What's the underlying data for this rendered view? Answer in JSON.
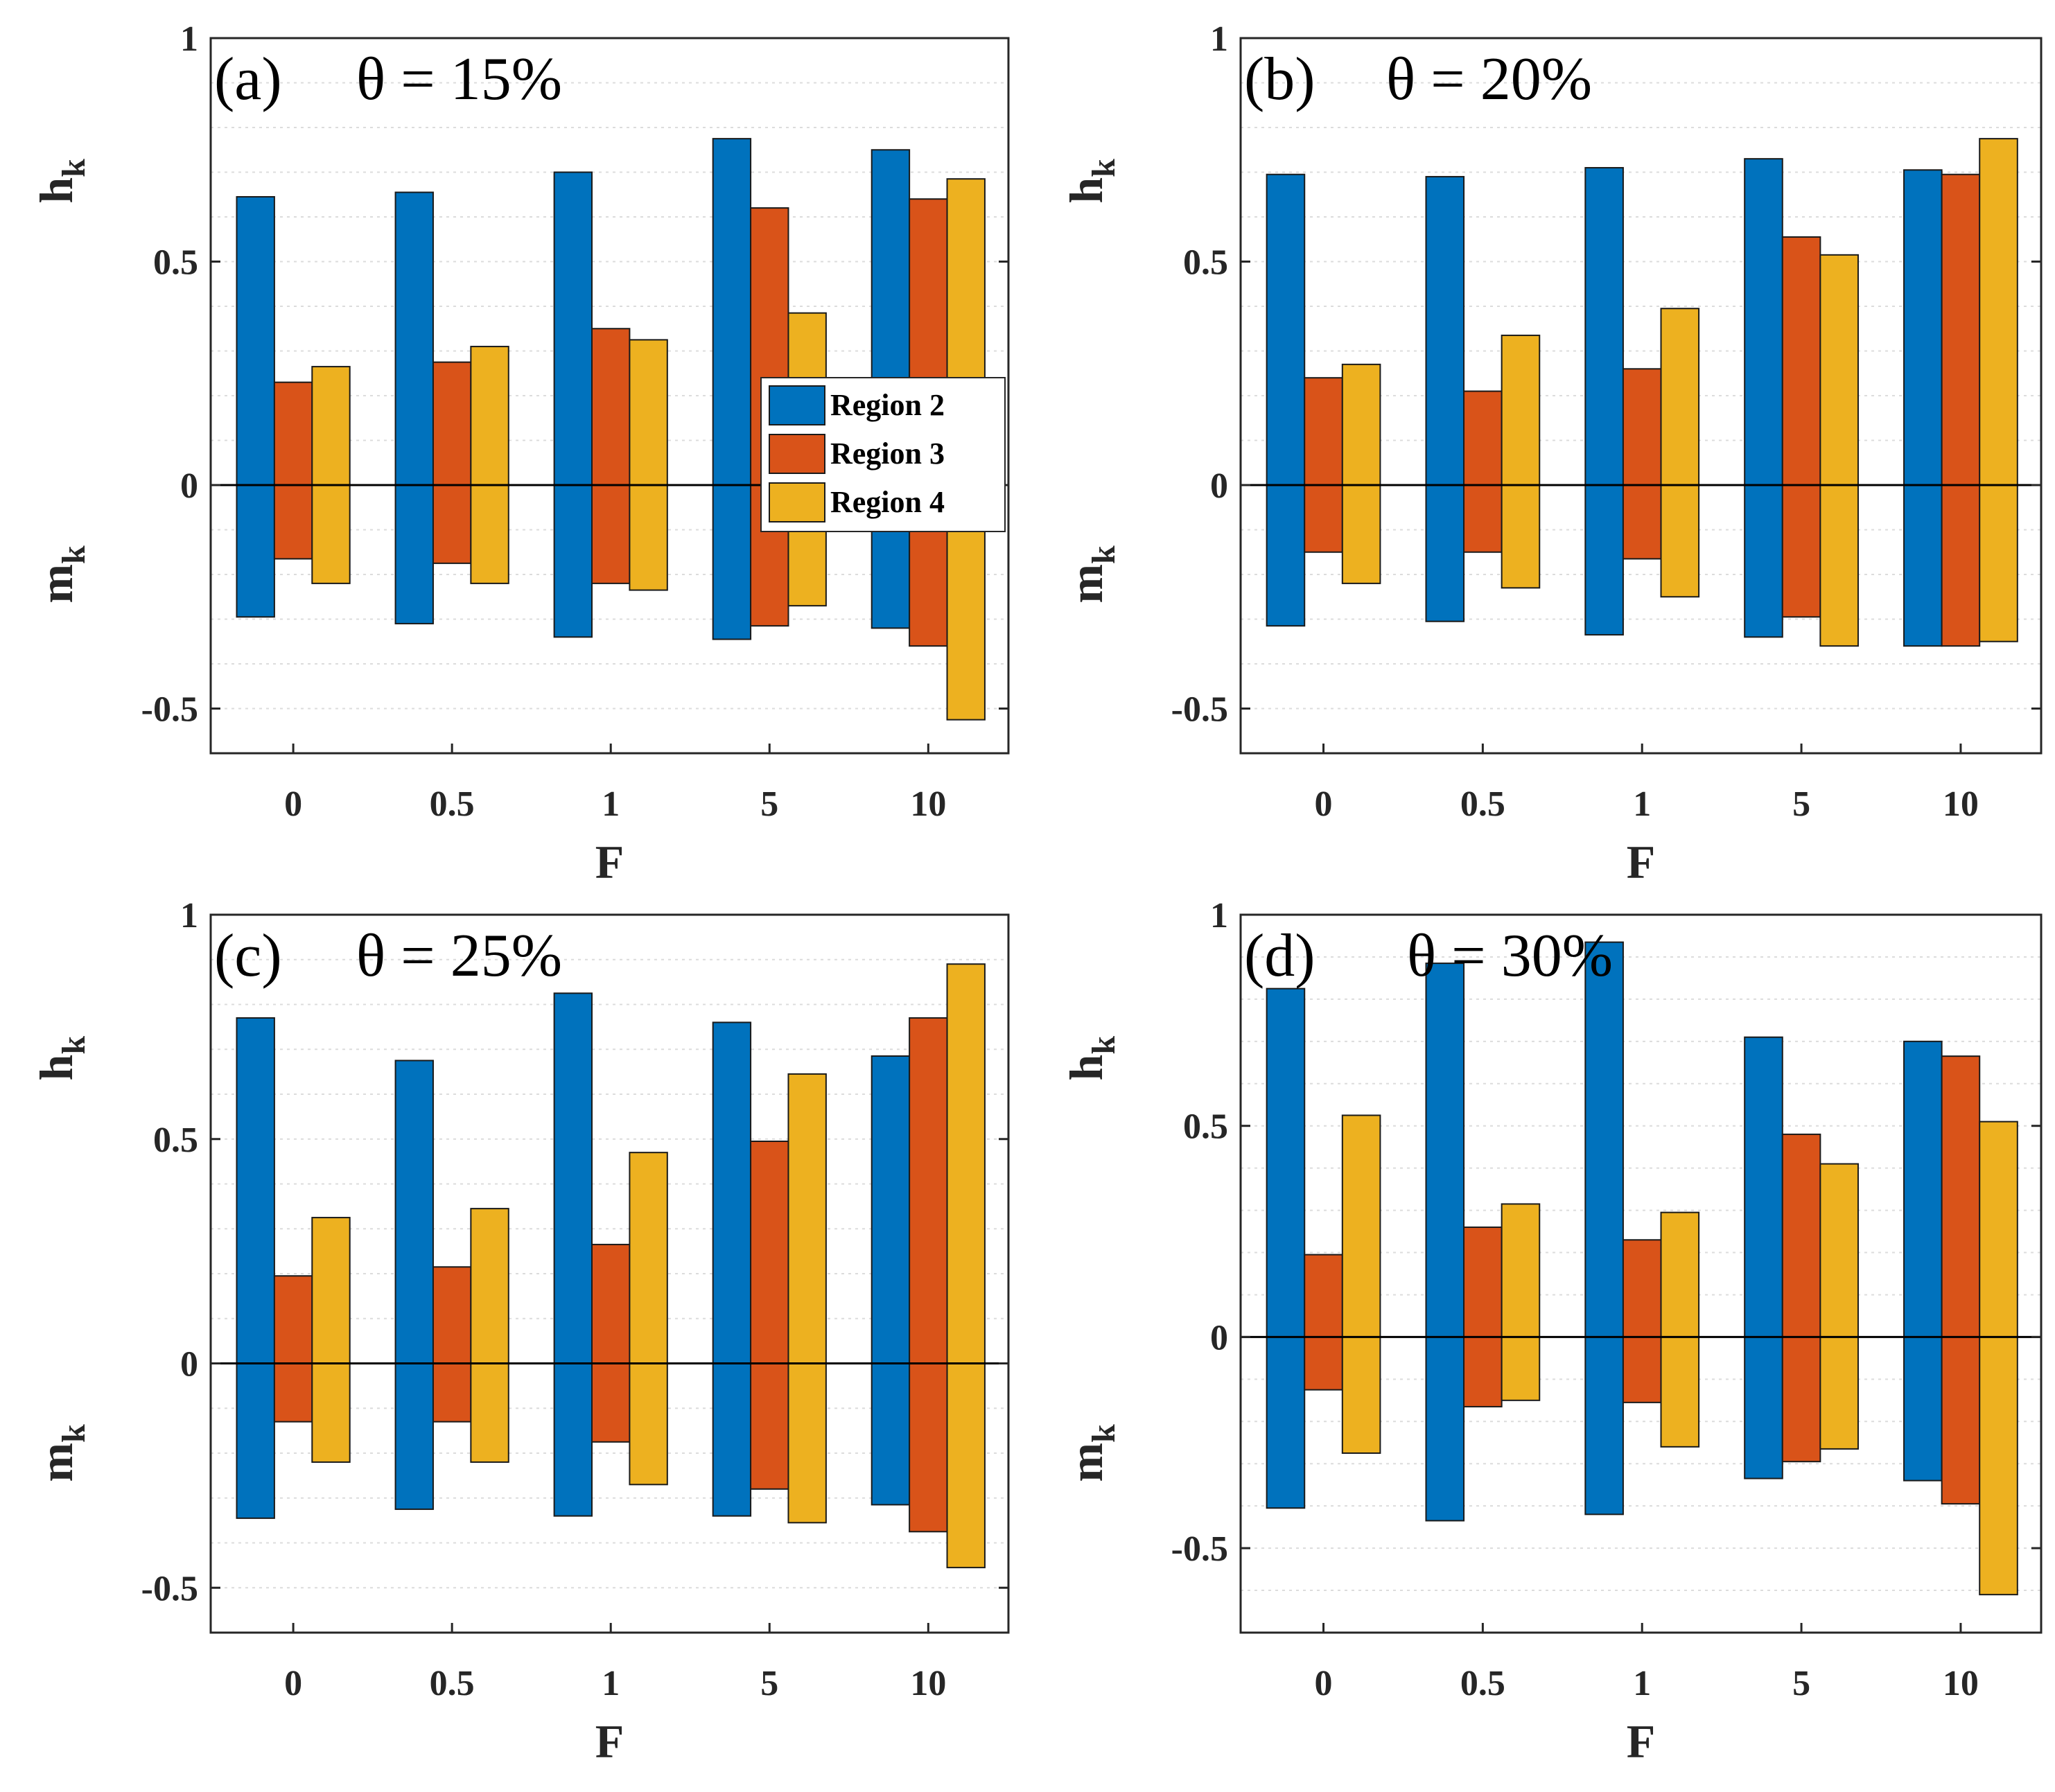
{
  "colors": {
    "region2": "#0072BD",
    "region3": "#D95319",
    "region4": "#EDB120"
  },
  "legend": [
    "Region 2",
    "Region 3",
    "Region 4"
  ],
  "chart_data": [
    {
      "type": "bar",
      "panel": "(a)",
      "title": "θ = 15%",
      "categories": [
        "0",
        "0.5",
        "1",
        "5",
        "10"
      ],
      "xlabel": "F",
      "ylabel_top": "h",
      "ylabel_bottom": "m",
      "ylabel_sub": "k",
      "ylim": [
        -0.6,
        1
      ],
      "yticks": [
        "1",
        "0.5",
        "0",
        "-0.5"
      ],
      "series_positive": [
        {
          "name": "Region 2",
          "values": [
            0.645,
            0.655,
            0.7,
            0.775,
            0.75
          ]
        },
        {
          "name": "Region 3",
          "values": [
            0.23,
            0.275,
            0.35,
            0.62,
            0.64
          ]
        },
        {
          "name": "Region 4",
          "values": [
            0.265,
            0.31,
            0.325,
            0.385,
            0.685
          ]
        }
      ],
      "series_negative": [
        {
          "name": "Region 2",
          "values": [
            -0.295,
            -0.31,
            -0.34,
            -0.345,
            -0.32
          ]
        },
        {
          "name": "Region 3",
          "values": [
            -0.165,
            -0.175,
            -0.22,
            -0.315,
            -0.36
          ]
        },
        {
          "name": "Region 4",
          "values": [
            -0.22,
            -0.22,
            -0.235,
            -0.27,
            -0.525
          ]
        }
      ]
    },
    {
      "type": "bar",
      "panel": "(b)",
      "title": "θ = 20%",
      "categories": [
        "0",
        "0.5",
        "1",
        "5",
        "10"
      ],
      "xlabel": "F",
      "ylabel_top": "h",
      "ylabel_bottom": "m",
      "ylabel_sub": "k",
      "ylim": [
        -0.6,
        1
      ],
      "yticks": [
        "1",
        "0.5",
        "0",
        "-0.5"
      ],
      "series_positive": [
        {
          "name": "Region 2",
          "values": [
            0.695,
            0.69,
            0.71,
            0.73,
            0.705
          ]
        },
        {
          "name": "Region 3",
          "values": [
            0.24,
            0.21,
            0.26,
            0.555,
            0.695
          ]
        },
        {
          "name": "Region 4",
          "values": [
            0.27,
            0.335,
            0.395,
            0.515,
            0.775
          ]
        }
      ],
      "series_negative": [
        {
          "name": "Region 2",
          "values": [
            -0.315,
            -0.305,
            -0.335,
            -0.34,
            -0.36
          ]
        },
        {
          "name": "Region 3",
          "values": [
            -0.15,
            -0.15,
            -0.165,
            -0.295,
            -0.36
          ]
        },
        {
          "name": "Region 4",
          "values": [
            -0.22,
            -0.23,
            -0.25,
            -0.36,
            -0.35
          ]
        }
      ]
    },
    {
      "type": "bar",
      "panel": "(c)",
      "title": "θ = 25%",
      "categories": [
        "0",
        "0.5",
        "1",
        "5",
        "10"
      ],
      "xlabel": "F",
      "ylabel_top": "h",
      "ylabel_bottom": "m",
      "ylabel_sub": "k",
      "ylim": [
        -0.6,
        1
      ],
      "yticks": [
        "1",
        "0.5",
        "0",
        "-0.5"
      ],
      "series_positive": [
        {
          "name": "Region 2",
          "values": [
            0.77,
            0.675,
            0.825,
            0.76,
            0.685
          ]
        },
        {
          "name": "Region 3",
          "values": [
            0.195,
            0.215,
            0.265,
            0.495,
            0.77
          ]
        },
        {
          "name": "Region 4",
          "values": [
            0.325,
            0.345,
            0.47,
            0.645,
            0.89
          ]
        }
      ],
      "series_negative": [
        {
          "name": "Region 2",
          "values": [
            -0.345,
            -0.325,
            -0.34,
            -0.34,
            -0.315
          ]
        },
        {
          "name": "Region 3",
          "values": [
            -0.13,
            -0.13,
            -0.175,
            -0.28,
            -0.375
          ]
        },
        {
          "name": "Region 4",
          "values": [
            -0.22,
            -0.22,
            -0.27,
            -0.355,
            -0.455
          ]
        }
      ]
    },
    {
      "type": "bar",
      "panel": "(d)",
      "title": "θ = 30%",
      "categories": [
        "0",
        "0.5",
        "1",
        "5",
        "10"
      ],
      "xlabel": "F",
      "ylabel_top": "h",
      "ylabel_bottom": "m",
      "ylabel_sub": "k",
      "ylim": [
        -0.7,
        1
      ],
      "yticks": [
        "1",
        "0.5",
        "0",
        "-0.5"
      ],
      "series_positive": [
        {
          "name": "Region 2",
          "values": [
            0.825,
            0.885,
            0.935,
            0.71,
            0.7
          ]
        },
        {
          "name": "Region 3",
          "values": [
            0.195,
            0.26,
            0.23,
            0.48,
            0.665
          ]
        },
        {
          "name": "Region 4",
          "values": [
            0.525,
            0.315,
            0.295,
            0.41,
            0.51
          ]
        }
      ],
      "series_negative": [
        {
          "name": "Region 2",
          "values": [
            -0.405,
            -0.435,
            -0.42,
            -0.335,
            -0.34
          ]
        },
        {
          "name": "Region 3",
          "values": [
            -0.125,
            -0.165,
            -0.155,
            -0.295,
            -0.395
          ]
        },
        {
          "name": "Region 4",
          "values": [
            -0.275,
            -0.15,
            -0.26,
            -0.265,
            -0.61
          ]
        }
      ]
    }
  ]
}
